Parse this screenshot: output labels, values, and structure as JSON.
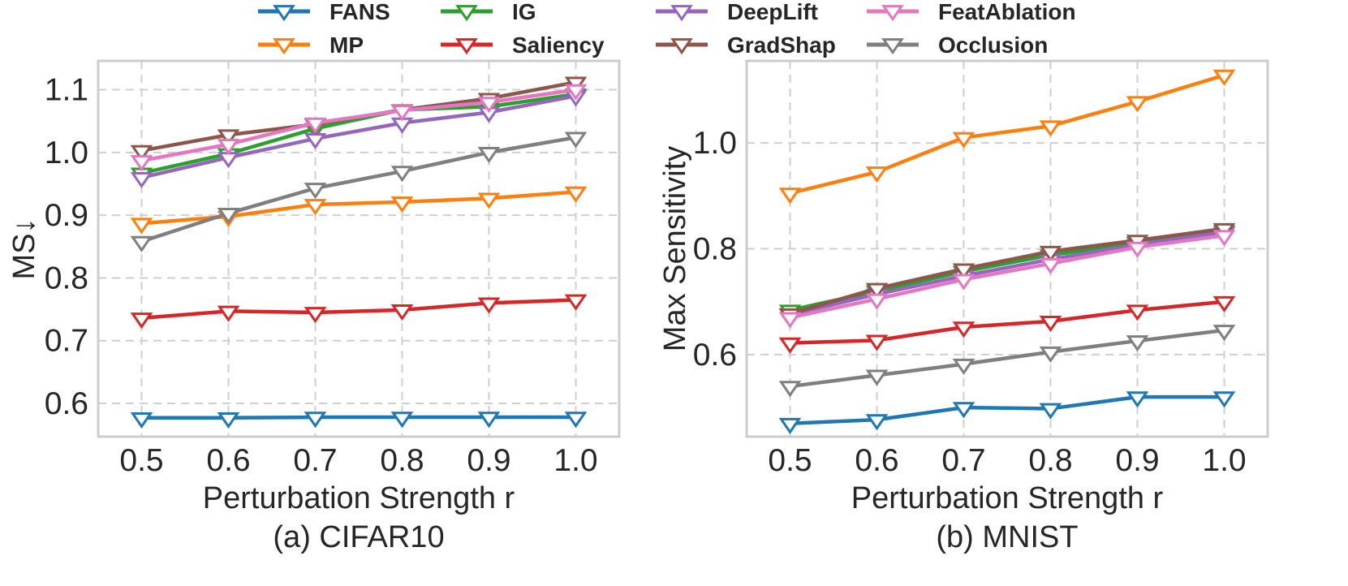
{
  "legend": {
    "items": [
      {
        "name": "FANS",
        "color": "#1f77b4"
      },
      {
        "name": "MP",
        "color": "#ff7f0e"
      },
      {
        "name": "IG",
        "color": "#2ca02c"
      },
      {
        "name": "Saliency",
        "color": "#d62728"
      },
      {
        "name": "DeepLift",
        "color": "#9467bd"
      },
      {
        "name": "GradShap",
        "color": "#8c564b"
      },
      {
        "name": "FeatAblation",
        "color": "#e377c2"
      },
      {
        "name": "Occlusion",
        "color": "#7f7f7f"
      }
    ]
  },
  "chart_data": [
    {
      "type": "line",
      "caption": "(a) CIFAR10",
      "xlabel": "Perturbation Strength r",
      "ylabel": "MS↓",
      "x": [
        0.5,
        0.6,
        0.7,
        0.8,
        0.9,
        1.0
      ],
      "xticks": [
        "0.5",
        "0.6",
        "0.7",
        "0.8",
        "0.9",
        "1.0"
      ],
      "xlim": [
        0.45,
        1.05
      ],
      "yticks": [
        "0.6",
        "0.7",
        "0.8",
        "0.9",
        "1.0",
        "1.1"
      ],
      "ytick_values": [
        0.6,
        0.7,
        0.8,
        0.9,
        1.0,
        1.1
      ],
      "ylim": [
        0.547,
        1.146
      ],
      "grid": true,
      "marker": "triangle-down-open",
      "series": [
        {
          "name": "FANS",
          "values": [
            0.577,
            0.577,
            0.578,
            0.578,
            0.578,
            0.578
          ]
        },
        {
          "name": "MP",
          "values": [
            0.887,
            0.898,
            0.917,
            0.921,
            0.927,
            0.937
          ]
        },
        {
          "name": "IG",
          "values": [
            0.967,
            0.998,
            1.038,
            1.068,
            1.073,
            1.093
          ]
        },
        {
          "name": "Saliency",
          "values": [
            0.736,
            0.747,
            0.745,
            0.749,
            0.76,
            0.765
          ]
        },
        {
          "name": "DeepLift",
          "values": [
            0.96,
            0.992,
            1.022,
            1.047,
            1.064,
            1.09
          ]
        },
        {
          "name": "GradShap",
          "values": [
            1.003,
            1.028,
            1.045,
            1.068,
            1.086,
            1.112
          ]
        },
        {
          "name": "FeatAblation",
          "values": [
            0.987,
            1.013,
            1.047,
            1.067,
            1.08,
            1.1
          ]
        },
        {
          "name": "Occlusion",
          "values": [
            0.858,
            0.903,
            0.943,
            0.97,
            1.0,
            1.024
          ]
        }
      ]
    },
    {
      "type": "line",
      "caption": "(b) MNIST",
      "xlabel": "Perturbation Strength r",
      "ylabel": "Max Sensitivity",
      "x": [
        0.5,
        0.6,
        0.7,
        0.8,
        0.9,
        1.0
      ],
      "xticks": [
        "0.5",
        "0.6",
        "0.7",
        "0.8",
        "0.9",
        "1.0"
      ],
      "xlim": [
        0.45,
        1.05
      ],
      "yticks": [
        "0.6",
        "0.8",
        "1.0"
      ],
      "ytick_values": [
        0.6,
        0.8,
        1.0
      ],
      "ylim": [
        0.445,
        1.155
      ],
      "grid": true,
      "marker": "triangle-down-open",
      "series": [
        {
          "name": "FANS",
          "values": [
            0.47,
            0.477,
            0.5,
            0.498,
            0.52,
            0.52
          ]
        },
        {
          "name": "MP",
          "values": [
            0.905,
            0.945,
            1.01,
            1.032,
            1.078,
            1.128
          ]
        },
        {
          "name": "IG",
          "values": [
            0.684,
            0.72,
            0.757,
            0.788,
            0.812,
            0.834
          ]
        },
        {
          "name": "Saliency",
          "values": [
            0.622,
            0.627,
            0.652,
            0.663,
            0.684,
            0.7
          ]
        },
        {
          "name": "DeepLift",
          "values": [
            0.676,
            0.714,
            0.749,
            0.78,
            0.808,
            0.831
          ]
        },
        {
          "name": "GradShap",
          "values": [
            0.677,
            0.725,
            0.762,
            0.795,
            0.816,
            0.838
          ]
        },
        {
          "name": "FeatAblation",
          "values": [
            0.67,
            0.705,
            0.742,
            0.772,
            0.803,
            0.825
          ]
        },
        {
          "name": "Occlusion",
          "values": [
            0.54,
            0.561,
            0.582,
            0.605,
            0.626,
            0.646
          ]
        }
      ]
    }
  ]
}
